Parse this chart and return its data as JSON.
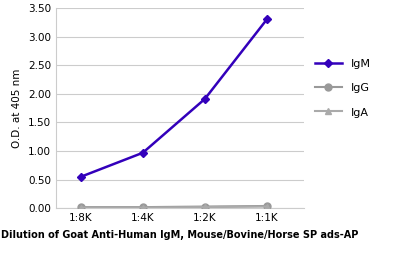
{
  "x_labels": [
    "1:8K",
    "1:4K",
    "1:2K",
    "1:1K"
  ],
  "x_values": [
    1,
    2,
    3,
    4
  ],
  "igm_values": [
    0.55,
    0.97,
    1.91,
    3.3
  ],
  "igg_values": [
    0.02,
    0.02,
    0.03,
    0.04
  ],
  "iga_values": [
    0.01,
    0.01,
    0.02,
    0.03
  ],
  "igm_color": "#3300bb",
  "igg_color": "#999999",
  "iga_color": "#aaaaaa",
  "ylabel": "O.D. at 405 nm",
  "xlabel": "Dilution of Goat Anti-Human IgM, Mouse/Bovine/Horse SP ads-AP",
  "ylim": [
    0.0,
    3.5
  ],
  "yticks": [
    0.0,
    0.5,
    1.0,
    1.5,
    2.0,
    2.5,
    3.0,
    3.5
  ],
  "background_color": "#ffffff",
  "grid_color": "#cccccc",
  "legend_labels": [
    "IgM",
    "IgG",
    "IgA"
  ]
}
